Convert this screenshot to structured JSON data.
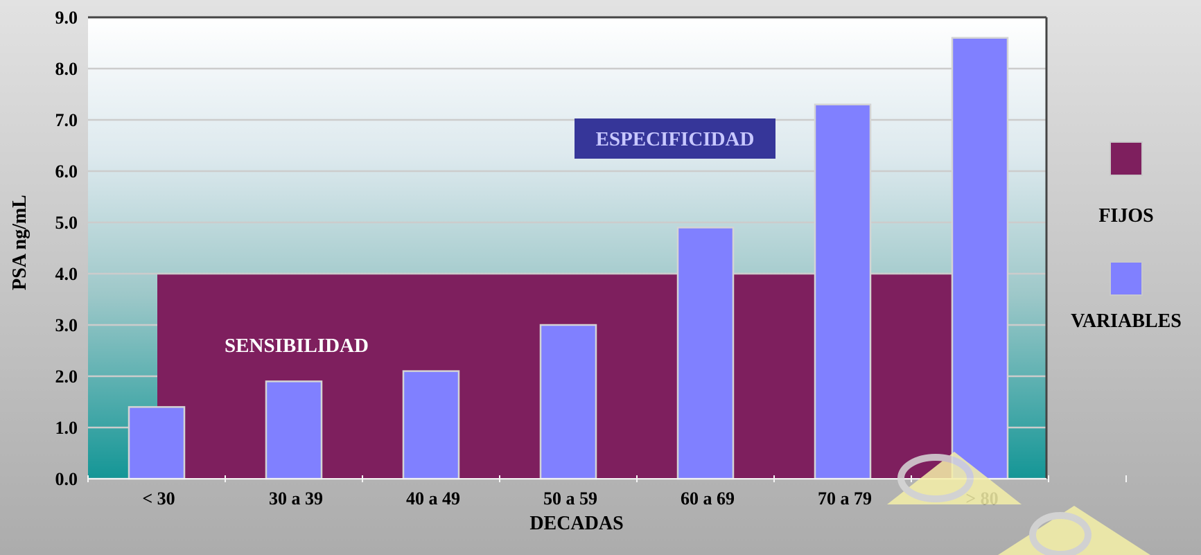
{
  "chart_data": {
    "type": "bar",
    "categories": [
      "< 30",
      "30 a 39",
      "40 a 49",
      "50 a 59",
      "60 a 69",
      "70 a 79",
      "> 80"
    ],
    "series": [
      {
        "name": "FIJOS",
        "values": [
          4.0,
          4.0,
          4.0,
          4.0,
          4.0,
          4.0,
          4.0
        ],
        "color": "#7e1f5e"
      },
      {
        "name": "VARIABLES",
        "values": [
          1.4,
          1.9,
          2.1,
          3.0,
          4.9,
          7.3,
          8.6
        ],
        "color": "#8080ff"
      }
    ],
    "xlabel": "DECADAS",
    "ylabel": "PSA ng/mL",
    "ylim": [
      0,
      9
    ],
    "yticks": [
      "0.0",
      "1.0",
      "2.0",
      "3.0",
      "4.0",
      "5.0",
      "6.0",
      "7.0",
      "8.0",
      "9.0"
    ],
    "grid": true,
    "legend_position": "right",
    "annotations": [
      {
        "text": "ESPECIFICIDAD",
        "color": "#c8c8ff",
        "background": "#363699"
      },
      {
        "text": "SENSIBILIDAD",
        "color": "#ffffff"
      }
    ]
  }
}
